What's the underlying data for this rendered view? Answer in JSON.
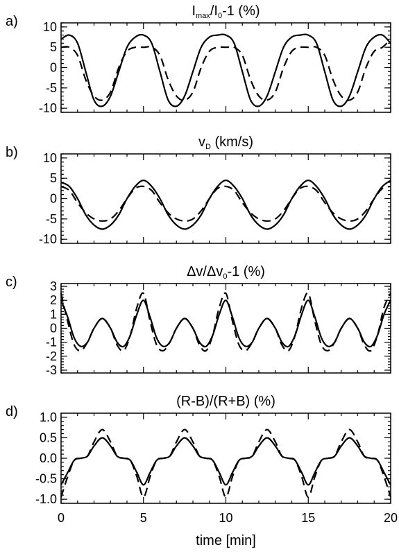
{
  "chart_data": [
    {
      "type": "line",
      "panel_label": "a)",
      "title": "I_max/I_0-1 (%)",
      "title_parts": {
        "main": "I",
        "sub1": "max",
        "mid": "/I",
        "sub2": "0",
        "tail": "-1 (%)"
      },
      "xlim": [
        0,
        20
      ],
      "ylim": [
        -11,
        11
      ],
      "yticks": [
        -10,
        -5,
        0,
        5,
        10
      ],
      "xticks": [
        0,
        5,
        10,
        15,
        20
      ],
      "show_x_tick_labels": false,
      "series": [
        {
          "style": "solid",
          "x": [
            0,
            0.5,
            1,
            1.5,
            2,
            2.5,
            3,
            3.5,
            4,
            4.5,
            5,
            5.5,
            6,
            6.5,
            7,
            7.5,
            8,
            8.5,
            9,
            9.5,
            10,
            10.5,
            11,
            11.5,
            12,
            12.5,
            13,
            13.5,
            14,
            14.5,
            15,
            15.5,
            16,
            16.5,
            17,
            17.5,
            18,
            18.5,
            19,
            19.5,
            20
          ],
          "y": [
            7,
            8,
            6,
            -1,
            -8,
            -9.5,
            -7,
            -1,
            5,
            7.5,
            8,
            6,
            -1,
            -8,
            -9.5,
            -7,
            -1,
            5,
            7.5,
            8,
            8,
            6,
            -1,
            -8,
            -9.5,
            -7,
            -1,
            5,
            7.5,
            8,
            8,
            6,
            -1,
            -8,
            -9.5,
            -7,
            -1,
            5,
            7.5,
            8,
            6
          ]
        },
        {
          "style": "dashed",
          "x": [
            0,
            0.5,
            1,
            1.5,
            2,
            2.5,
            3,
            3.5,
            4,
            4.5,
            5,
            5.5,
            6,
            6.5,
            7,
            7.5,
            8,
            8.5,
            9,
            9.5,
            10,
            10.5,
            11,
            11.5,
            12,
            12.5,
            13,
            13.5,
            14,
            14.5,
            15,
            15.5,
            16,
            16.5,
            17,
            17.5,
            18,
            18.5,
            19,
            19.5,
            20
          ],
          "y": [
            5,
            5,
            3,
            -3,
            -7,
            -8,
            -6,
            0,
            4,
            5,
            5,
            5,
            3,
            -3,
            -7,
            -8,
            -6,
            0,
            4,
            5,
            5,
            5,
            3,
            -3,
            -7,
            -8,
            -6,
            0,
            4,
            5,
            5,
            5,
            3,
            -3,
            -7,
            -8,
            -6,
            0,
            4,
            5,
            7
          ]
        }
      ]
    },
    {
      "type": "line",
      "panel_label": "b)",
      "title": "v_D (km/s)",
      "title_parts": {
        "main": "v",
        "sub1": "D",
        "mid": "",
        "sub2": "",
        "tail": " (km/s)"
      },
      "xlim": [
        0,
        20
      ],
      "ylim": [
        -11,
        11
      ],
      "yticks": [
        -10,
        -5,
        0,
        5,
        10
      ],
      "xticks": [
        0,
        5,
        10,
        15,
        20
      ],
      "show_x_tick_labels": false,
      "series": [
        {
          "style": "solid",
          "x": [
            0,
            0.5,
            1,
            1.5,
            2,
            2.5,
            3,
            3.5,
            4,
            4.5,
            5,
            5.5,
            6,
            6.5,
            7,
            7.5,
            8,
            8.5,
            9,
            9.5,
            10,
            10.5,
            11,
            11.5,
            12,
            12.5,
            13,
            13.5,
            14,
            14.5,
            15,
            15.5,
            16,
            16.5,
            17,
            17.5,
            18,
            18.5,
            19,
            19.5,
            20
          ],
          "y": [
            4,
            3,
            0,
            -4,
            -6.5,
            -7.5,
            -6.5,
            -4,
            0,
            3,
            4.5,
            3,
            0,
            -4,
            -6.5,
            -7.5,
            -6.5,
            -4,
            0,
            3,
            4.5,
            3,
            0,
            -4,
            -6.5,
            -7.5,
            -6.5,
            -4,
            0,
            3,
            4.5,
            3,
            0,
            -4,
            -6.5,
            -7.5,
            -6.5,
            -4,
            0,
            3,
            4.5
          ]
        },
        {
          "style": "dashed",
          "x": [
            0,
            0.5,
            1,
            1.5,
            2,
            2.5,
            3,
            3.5,
            4,
            4.5,
            5,
            5.5,
            6,
            6.5,
            7,
            7.5,
            8,
            8.5,
            9,
            9.5,
            10,
            10.5,
            11,
            11.5,
            12,
            12.5,
            13,
            13.5,
            14,
            14.5,
            15,
            15.5,
            16,
            16.5,
            17,
            17.5,
            18,
            18.5,
            19,
            19.5,
            20
          ],
          "y": [
            3,
            2,
            -1,
            -3.5,
            -5,
            -5.5,
            -5,
            -3,
            0,
            2.5,
            3,
            2,
            -1,
            -3.5,
            -5,
            -5.5,
            -5,
            -3,
            0,
            2.5,
            3,
            2,
            -1,
            -3.5,
            -5,
            -5.5,
            -5,
            -3,
            0,
            2.5,
            3,
            2,
            -1,
            -3.5,
            -5,
            -5.5,
            -5,
            -3,
            0,
            2.5,
            3
          ]
        }
      ]
    },
    {
      "type": "line",
      "panel_label": "c)",
      "title": "Δv/Δv_0-1 (%)",
      "title_parts": {
        "main": "Δv/Δv",
        "sub1": "0",
        "mid": "",
        "sub2": "",
        "tail": "-1 (%)"
      },
      "xlim": [
        0,
        20
      ],
      "ylim": [
        -3.2,
        3.2
      ],
      "yticks": [
        -3,
        -2,
        -1,
        0,
        1,
        2,
        3
      ],
      "xticks": [
        0,
        5,
        10,
        15,
        20
      ],
      "show_x_tick_labels": false,
      "series": [
        {
          "style": "solid",
          "x": [
            0,
            0.4,
            0.8,
            1.2,
            1.6,
            2.0,
            2.5,
            3.0,
            3.4,
            3.8,
            4.2,
            4.6,
            5.0,
            5.4,
            5.8,
            6.2,
            6.6,
            7.0,
            7.5,
            8.0,
            8.4,
            8.8,
            9.2,
            9.6,
            10.0,
            10.4,
            10.8,
            11.2,
            11.6,
            12.0,
            12.5,
            13.0,
            13.4,
            13.8,
            14.2,
            14.6,
            15.0,
            15.4,
            15.8,
            16.2,
            16.6,
            17.0,
            17.5,
            18.0,
            18.4,
            18.8,
            19.2,
            19.6,
            20.0
          ],
          "y": [
            2,
            0.8,
            -0.7,
            -1.3,
            -1.0,
            0.0,
            0.7,
            0.0,
            -1.0,
            -1.3,
            -0.5,
            1.0,
            2,
            0.8,
            -0.7,
            -1.3,
            -1.0,
            0.0,
            0.7,
            0.0,
            -1.0,
            -1.3,
            -0.5,
            1.0,
            2,
            0.8,
            -0.7,
            -1.3,
            -1.0,
            0.0,
            0.7,
            0.0,
            -1.0,
            -1.3,
            -0.5,
            1.0,
            2,
            0.8,
            -0.7,
            -1.3,
            -1.0,
            0.0,
            0.7,
            0.0,
            -1.0,
            -1.3,
            -0.5,
            1.0,
            2
          ]
        },
        {
          "style": "dashed",
          "x": [
            0,
            0.4,
            0.8,
            1.2,
            1.6,
            2.0,
            2.5,
            3.0,
            3.4,
            3.8,
            4.2,
            4.6,
            5.0,
            5.4,
            5.8,
            6.2,
            6.6,
            7.0,
            7.5,
            8.0,
            8.4,
            8.8,
            9.2,
            9.6,
            10.0,
            10.4,
            10.8,
            11.2,
            11.6,
            12.0,
            12.5,
            13.0,
            13.4,
            13.8,
            14.2,
            14.6,
            15.0,
            15.4,
            15.8,
            16.2,
            16.6,
            17.0,
            17.5,
            18.0,
            18.4,
            18.8,
            19.2,
            19.6,
            20.0
          ],
          "y": [
            2.5,
            0.5,
            -1.2,
            -1.6,
            -1.0,
            0.0,
            0.7,
            0.0,
            -1.2,
            -1.6,
            -0.5,
            1.5,
            2.5,
            0.5,
            -1.2,
            -1.6,
            -1.0,
            0.0,
            0.7,
            0.0,
            -1.2,
            -1.6,
            -0.5,
            1.5,
            2.5,
            0.5,
            -1.2,
            -1.6,
            -1.0,
            0.0,
            0.7,
            0.0,
            -1.2,
            -1.6,
            -0.5,
            1.5,
            2.5,
            0.5,
            -1.2,
            -1.6,
            -1.0,
            0.0,
            0.7,
            0.0,
            -1.2,
            -1.6,
            -0.5,
            1.5,
            2.5
          ]
        }
      ]
    },
    {
      "type": "line",
      "panel_label": "d)",
      "title": "(R-B)/(R+B) (%)",
      "title_parts": {
        "main": "(R-B)/(R+B) (%)",
        "sub1": "",
        "mid": "",
        "sub2": "",
        "tail": ""
      },
      "xlim": [
        0,
        20
      ],
      "ylim": [
        -1.1,
        1.1
      ],
      "yticks": [
        -1.0,
        -0.5,
        0.0,
        0.5,
        1.0
      ],
      "ytick_labels": [
        "-1.0",
        "-0.5",
        "0.0",
        "0.5",
        "1.0"
      ],
      "xticks": [
        0,
        5,
        10,
        15,
        20
      ],
      "show_x_tick_labels": true,
      "xlabel": "time [min]",
      "series": [
        {
          "style": "solid",
          "x": [
            0,
            0.4,
            0.8,
            1.2,
            1.6,
            2.0,
            2.5,
            3.0,
            3.4,
            3.8,
            4.2,
            4.6,
            5.0,
            5.4,
            5.8,
            6.2,
            6.6,
            7.0,
            7.5,
            8.0,
            8.4,
            8.8,
            9.2,
            9.6,
            10.0,
            10.4,
            10.8,
            11.2,
            11.6,
            12.0,
            12.5,
            13.0,
            13.4,
            13.8,
            14.2,
            14.6,
            15.0,
            15.4,
            15.8,
            16.2,
            16.6,
            17.0,
            17.5,
            18.0,
            18.4,
            18.8,
            19.2,
            19.6,
            20.0
          ],
          "y": [
            -0.65,
            -0.35,
            -0.05,
            0.0,
            0.05,
            0.3,
            0.5,
            0.3,
            0.05,
            0.0,
            -0.05,
            -0.35,
            -0.65,
            -0.35,
            -0.05,
            0.0,
            0.05,
            0.3,
            0.5,
            0.3,
            0.05,
            0.0,
            -0.05,
            -0.35,
            -0.65,
            -0.35,
            -0.05,
            0.0,
            0.05,
            0.3,
            0.5,
            0.3,
            0.05,
            0.0,
            -0.05,
            -0.35,
            -0.65,
            -0.35,
            -0.05,
            0.0,
            0.05,
            0.3,
            0.5,
            0.3,
            0.05,
            0.0,
            -0.05,
            -0.35,
            -0.65
          ]
        },
        {
          "style": "dashed",
          "x": [
            0,
            0.4,
            0.8,
            1.2,
            1.6,
            2.0,
            2.5,
            3.0,
            3.4,
            3.8,
            4.2,
            4.6,
            5.0,
            5.4,
            5.8,
            6.2,
            6.6,
            7.0,
            7.5,
            8.0,
            8.4,
            8.8,
            9.2,
            9.6,
            10.0,
            10.4,
            10.8,
            11.2,
            11.6,
            12.0,
            12.5,
            13.0,
            13.4,
            13.8,
            14.2,
            14.6,
            15.0,
            15.4,
            15.8,
            16.2,
            16.6,
            17.0,
            17.5,
            18.0,
            18.4,
            18.8,
            19.2,
            19.6,
            20.0
          ],
          "y": [
            -0.95,
            -0.45,
            -0.05,
            0.0,
            0.05,
            0.4,
            0.7,
            0.4,
            0.05,
            0.0,
            -0.05,
            -0.45,
            -0.95,
            -0.45,
            -0.05,
            0.0,
            0.05,
            0.4,
            0.7,
            0.4,
            0.05,
            0.0,
            -0.05,
            -0.45,
            -0.95,
            -0.45,
            -0.05,
            0.0,
            0.05,
            0.4,
            0.7,
            0.4,
            0.05,
            0.0,
            -0.05,
            -0.45,
            -0.95,
            -0.45,
            -0.05,
            0.0,
            0.05,
            0.4,
            0.7,
            0.4,
            0.05,
            0.0,
            -0.05,
            -0.45,
            -0.95
          ]
        }
      ]
    }
  ]
}
